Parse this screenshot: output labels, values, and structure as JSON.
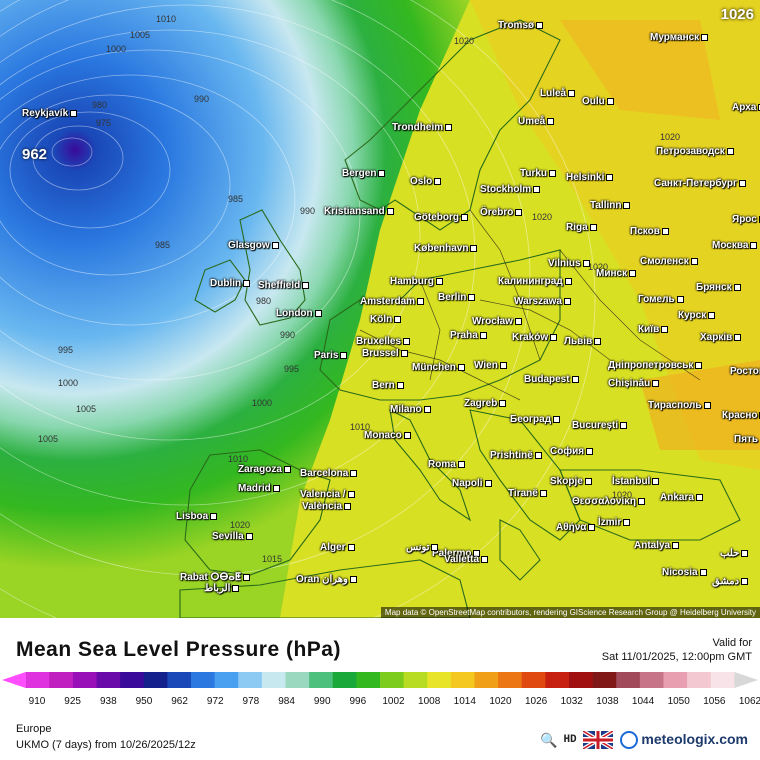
{
  "map": {
    "max_label": "1026",
    "low_center": "962",
    "attribution": "Map data © OpenStreetMap contributors, rendering GIScience Research Group @ Heidelberg University",
    "isobar_labels": [
      {
        "text": "1010"
      },
      {
        "text": "1005"
      },
      {
        "text": "1000"
      },
      {
        "text": "990"
      },
      {
        "text": "980"
      },
      {
        "text": "975"
      },
      {
        "text": "985"
      },
      {
        "text": "985"
      },
      {
        "text": "990"
      },
      {
        "text": "995"
      },
      {
        "text": "1000"
      },
      {
        "text": "1005"
      },
      {
        "text": "980"
      },
      {
        "text": "990"
      },
      {
        "text": "995"
      },
      {
        "text": "1000"
      },
      {
        "text": "1005"
      },
      {
        "text": "1010"
      },
      {
        "text": "1010"
      },
      {
        "text": "1015"
      },
      {
        "text": "1020"
      },
      {
        "text": "1020"
      },
      {
        "text": "1020"
      },
      {
        "text": "1020"
      },
      {
        "text": "1020"
      },
      {
        "text": "1020"
      }
    ],
    "cities": [
      {
        "name": "Reykjavík"
      },
      {
        "name": "Tromsø"
      },
      {
        "name": "Мурманск"
      },
      {
        "name": "Luleå"
      },
      {
        "name": "Oulu"
      },
      {
        "name": "Арха"
      },
      {
        "name": "Umeå"
      },
      {
        "name": "Trondheim"
      },
      {
        "name": "Петрозаводск"
      },
      {
        "name": "Bergen"
      },
      {
        "name": "Oslo"
      },
      {
        "name": "Turku"
      },
      {
        "name": "Helsinki"
      },
      {
        "name": "Санкт-Петербург"
      },
      {
        "name": "Stockholm"
      },
      {
        "name": "Kristiansand"
      },
      {
        "name": "Örebro"
      },
      {
        "name": "Tallinn"
      },
      {
        "name": "Göteborg"
      },
      {
        "name": "Ярос"
      },
      {
        "name": "Псков"
      },
      {
        "name": "Glasgow"
      },
      {
        "name": "København"
      },
      {
        "name": "Riga"
      },
      {
        "name": "Москва"
      },
      {
        "name": "Vilnius"
      },
      {
        "name": "Смоленск"
      },
      {
        "name": "Hamburg"
      },
      {
        "name": "Калининград"
      },
      {
        "name": "Минск"
      },
      {
        "name": "Dublin"
      },
      {
        "name": "Sheffield"
      },
      {
        "name": "Berlin"
      },
      {
        "name": "Брянск"
      },
      {
        "name": "Amsterdam"
      },
      {
        "name": "Warszawa"
      },
      {
        "name": "Гомель"
      },
      {
        "name": "London"
      },
      {
        "name": "Köln"
      },
      {
        "name": "Wrocław"
      },
      {
        "name": "Курск"
      },
      {
        "name": "Київ"
      },
      {
        "name": "Bruxelles"
      },
      {
        "name": "Brussel"
      },
      {
        "name": "Praha"
      },
      {
        "name": "Kraków"
      },
      {
        "name": "Львів"
      },
      {
        "name": "Харків"
      },
      {
        "name": "Paris"
      },
      {
        "name": "München"
      },
      {
        "name": "Wien"
      },
      {
        "name": "Дніпропетровськ"
      },
      {
        "name": "Bern"
      },
      {
        "name": "Budapest"
      },
      {
        "name": "Chișinău"
      },
      {
        "name": "Ростов"
      },
      {
        "name": "Milano"
      },
      {
        "name": "Zagreb"
      },
      {
        "name": "Тирасполь"
      },
      {
        "name": "Monaco"
      },
      {
        "name": "Београд"
      },
      {
        "name": "București"
      },
      {
        "name": "Красно"
      },
      {
        "name": "Пять"
      },
      {
        "name": "Zaragoza"
      },
      {
        "name": "Barcelona"
      },
      {
        "name": "Prishtinë"
      },
      {
        "name": "София"
      },
      {
        "name": "Madrid"
      },
      {
        "name": "Roma"
      },
      {
        "name": "Napoli"
      },
      {
        "name": "Skopje"
      },
      {
        "name": "İstanbul"
      },
      {
        "name": "Valencia /"
      },
      {
        "name": "València"
      },
      {
        "name": "Tiranë"
      },
      {
        "name": "Θεσσαλονίκη"
      },
      {
        "name": "Ankara"
      },
      {
        "name": "Lisboa"
      },
      {
        "name": "İzmir"
      },
      {
        "name": "Sevilla"
      },
      {
        "name": "Palermo"
      },
      {
        "name": "Αθήνα"
      },
      {
        "name": "Alger"
      },
      {
        "name": "تونس"
      },
      {
        "name": "Valletta"
      },
      {
        "name": "Antalya"
      },
      {
        "name": "حلب"
      },
      {
        "name": "Rabat ⵔⴱⴰⵟ"
      },
      {
        "name": "الرباط"
      },
      {
        "name": "Oran وهران"
      },
      {
        "name": "Nicosia"
      },
      {
        "name": "دمشق"
      }
    ]
  },
  "legend": {
    "title": "Mean Sea Level Pressure (hPa)",
    "valid_label": "Valid for",
    "valid_time": "Sat 11/01/2025, 12:00pm GMT",
    "ticks": [
      "910",
      "925",
      "938",
      "950",
      "962",
      "972",
      "978",
      "984",
      "990",
      "996",
      "1002",
      "1008",
      "1014",
      "1020",
      "1026",
      "1032",
      "1038",
      "1044",
      "1050",
      "1056",
      "1062"
    ],
    "colors": [
      "#ff4dff",
      "#e033e0",
      "#c020c0",
      "#9a10b8",
      "#6a0aa8",
      "#3a0a9a",
      "#14208c",
      "#1a48b8",
      "#2a78e0",
      "#4aa0f0",
      "#8ccaf4",
      "#c8e8f0",
      "#9ad8c0",
      "#4cc07c",
      "#1aa83a",
      "#34b820",
      "#7ccc1e",
      "#b8dc24",
      "#e8e42a",
      "#f4c820",
      "#f0a018",
      "#ec7614",
      "#e04a10",
      "#c82010",
      "#a01010",
      "#801818",
      "#a04a5a",
      "#c87488",
      "#e8a0b0",
      "#f4c8d0",
      "#f8e4e8",
      "#d8d8d8"
    ],
    "region": "Europe",
    "model": "UKMO (7 days) from  10/26/2025/12z",
    "brand": "meteologix.com",
    "hd_label": "HD"
  }
}
